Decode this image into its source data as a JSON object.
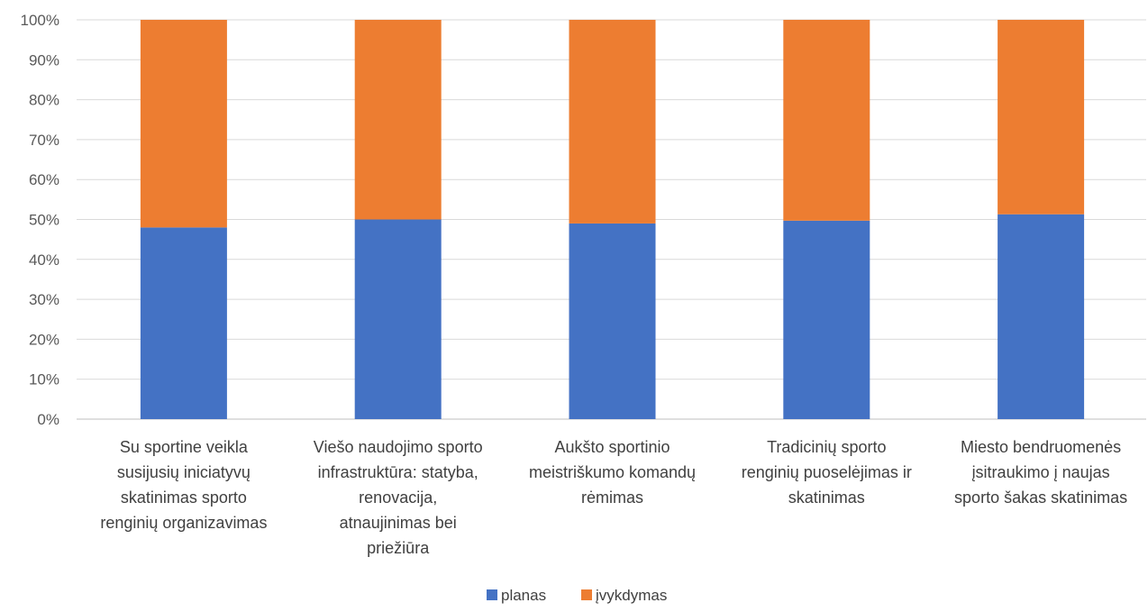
{
  "chart_data": {
    "type": "bar",
    "stacked": true,
    "percent_stacked": true,
    "categories": [
      [
        "Su sportine veikla",
        "susijusių iniciatyvų",
        "skatinimas sporto",
        "renginių organizavimas"
      ],
      [
        "Viešo naudojimo sporto",
        "infrastruktūra: statyba,",
        "renovacija,",
        "atnaujinimas bei",
        "priežiūra"
      ],
      [
        "Aukšto sportinio",
        "meistriškumo komandų",
        "rėmimas"
      ],
      [
        "Tradicinių sporto",
        "renginių puoselėjimas ir",
        "skatinimas"
      ],
      [
        "Miesto bendruomenės",
        "įsitraukimo į naujas",
        "sporto šakas skatinimas"
      ]
    ],
    "series": [
      {
        "name": "planas",
        "color": "#4472C4",
        "values": [
          48,
          50,
          49,
          49.7,
          51.3
        ]
      },
      {
        "name": "įvykdymas",
        "color": "#ED7D31",
        "values": [
          52,
          50,
          51,
          50.3,
          48.7
        ]
      }
    ],
    "ylim": [
      0,
      100
    ],
    "yticks": [
      "0%",
      "10%",
      "20%",
      "30%",
      "40%",
      "50%",
      "60%",
      "70%",
      "80%",
      "90%",
      "100%"
    ],
    "grid": true,
    "legend_position": "bottom"
  }
}
